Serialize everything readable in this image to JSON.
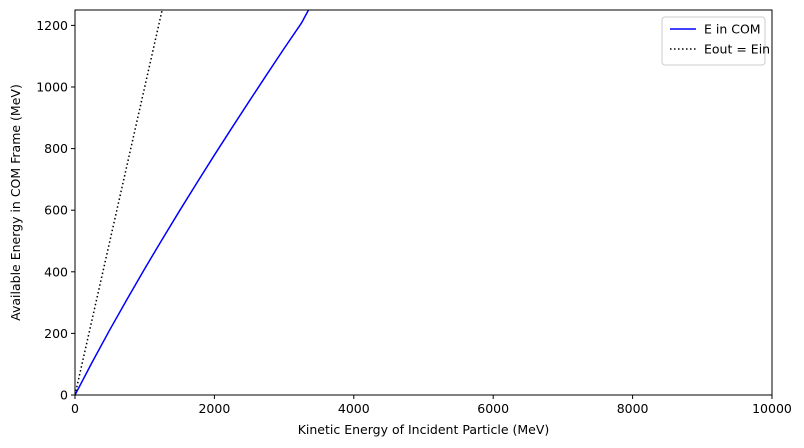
{
  "chart_data": {
    "type": "line",
    "xlabel": "Kinetic Energy of Incident Particle (MeV)",
    "ylabel": "Available Energy in COM Frame (MeV)",
    "xlim": [
      0,
      10000
    ],
    "ylim": [
      0,
      1250
    ],
    "xticks": [
      0,
      2000,
      4000,
      6000,
      8000,
      10000
    ],
    "yticks": [
      0,
      200,
      400,
      600,
      800,
      1000,
      1200
    ],
    "grid": false,
    "legend_position": "top-right",
    "series": [
      {
        "name": "E in COM",
        "color": "#0000ff",
        "style": "solid",
        "x": [
          0,
          250,
          500,
          750,
          1000,
          1250,
          1500,
          1750,
          2000,
          2250,
          2500,
          2750,
          3000,
          3250,
          3350
        ],
        "y": [
          0,
          108,
          212,
          312,
          410,
          505,
          598,
          689,
          779,
          867,
          954,
          1040,
          1125,
          1208,
          1250
        ]
      },
      {
        "name": "Eout = Ein",
        "color": "#000000",
        "style": "dotted",
        "x": [
          0,
          1250
        ],
        "y": [
          0,
          1250
        ]
      }
    ]
  }
}
